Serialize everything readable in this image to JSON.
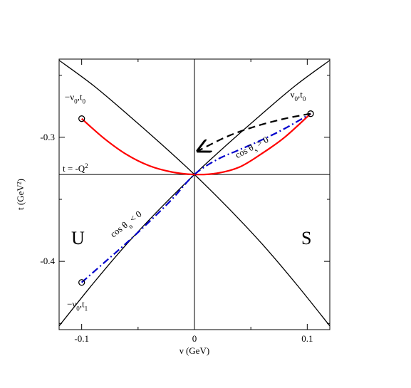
{
  "chart_data": {
    "type": "line",
    "xlabel": "ν (GeV)",
    "ylabel": "t (GeV²)",
    "xlim": [
      -0.12,
      0.12
    ],
    "ylim": [
      -0.455,
      -0.237
    ],
    "xticks": [
      "-0.1",
      "0",
      "0.1"
    ],
    "yticks": [
      "-0.3",
      "-0.4"
    ],
    "xtick_values": [
      -0.1,
      0,
      0.1
    ],
    "ytick_values": [
      -0.3,
      -0.4
    ],
    "reference_lines": {
      "x": 0,
      "y": -0.33
    },
    "hline_label": "t = -Q",
    "hline_label_sup": "2",
    "region_labels": [
      "U",
      "S"
    ],
    "boundary_curves": [
      {
        "x": [
          -0.12,
          -0.09,
          -0.06,
          -0.03,
          0.0,
          0.03,
          0.06,
          0.09,
          0.12
        ],
        "y": [
          -0.238,
          -0.258,
          -0.281,
          -0.305,
          -0.33,
          -0.357,
          -0.386,
          -0.418,
          -0.452
        ]
      },
      {
        "x": [
          -0.12,
          -0.09,
          -0.06,
          -0.03,
          0.0,
          0.03,
          0.06,
          0.09,
          0.12
        ],
        "y": [
          -0.452,
          -0.418,
          -0.386,
          -0.357,
          -0.33,
          -0.305,
          -0.281,
          -0.258,
          -0.238
        ]
      }
    ],
    "red_curve": {
      "x": [
        -0.1,
        -0.08,
        -0.06,
        -0.04,
        -0.02,
        0.0,
        0.02,
        0.04,
        0.06,
        0.08,
        0.103
      ],
      "y": [
        -0.285,
        -0.301,
        -0.314,
        -0.323,
        -0.328,
        -0.33,
        -0.329,
        -0.324,
        -0.313,
        -0.3,
        -0.281
      ]
    },
    "blue_curve": {
      "x": [
        -0.1,
        -0.08,
        -0.06,
        -0.04,
        -0.02,
        0.0,
        0.02,
        0.04,
        0.06,
        0.08,
        0.103
      ],
      "y": [
        -0.417,
        -0.401,
        -0.385,
        -0.368,
        -0.35,
        -0.33,
        -0.318,
        -0.31,
        -0.302,
        -0.293,
        -0.281
      ]
    },
    "dashed_arrow": {
      "x": [
        0.103,
        0.08,
        0.055,
        0.03,
        0.003
      ],
      "y": [
        -0.281,
        -0.285,
        -0.291,
        -0.299,
        -0.311
      ]
    },
    "points": [
      {
        "name": "−ν",
        "sub": "0",
        "rest": ",t",
        "sub2": "0",
        "x": -0.1,
        "y": -0.285
      },
      {
        "name": "ν",
        "sub": "0",
        "rest": ",t",
        "sub2": "0",
        "x": 0.103,
        "y": -0.281
      },
      {
        "name": "−ν",
        "sub": "0",
        "rest": ",t",
        "sub2": "1",
        "x": -0.1,
        "y": -0.417
      }
    ],
    "annotations": {
      "cos_s": {
        "text": "cos θ",
        "sub": "s",
        "rest": " > 0"
      },
      "cos_u": {
        "text": "cos θ",
        "sub": "u",
        "rest": " < 0"
      }
    },
    "colors": {
      "red": "#ff0000",
      "blue": "#0000cc",
      "black": "#000000"
    }
  }
}
